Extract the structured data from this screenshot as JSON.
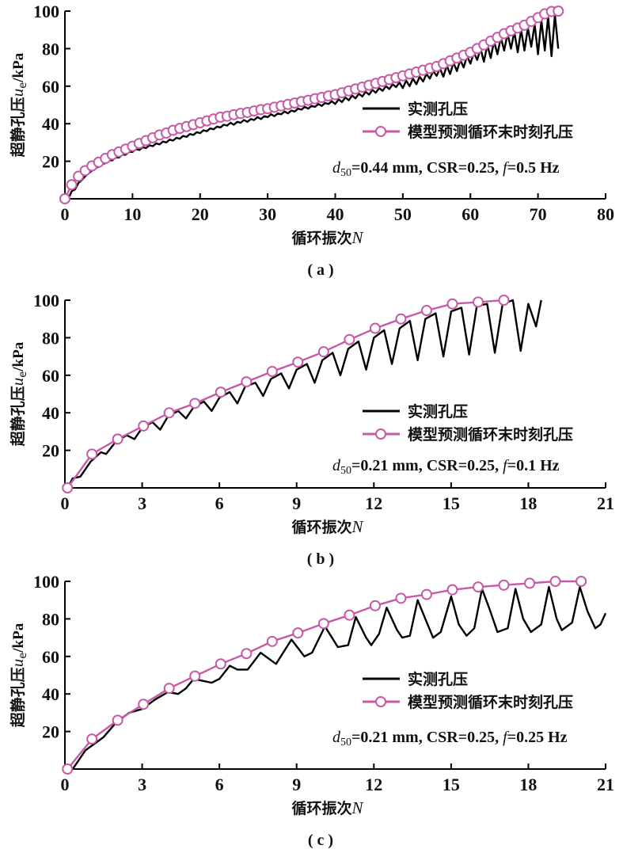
{
  "colors": {
    "measured": "#000000",
    "predicted": "#c65aa6",
    "marker_fill": "#ffffff"
  },
  "chart_data": [
    {
      "type": "line",
      "caption": "( a )",
      "xlabel": "循环振次",
      "xlabel_var": "N",
      "ylabel": "超静孔压",
      "ylabel_var": "u",
      "ylabel_sub": "e",
      "ylabel_unit": "/kPa",
      "xlim": [
        0,
        80
      ],
      "ylim": [
        0,
        100
      ],
      "xticks": [
        0,
        10,
        20,
        30,
        40,
        50,
        60,
        70,
        80
      ],
      "yticks": [
        20,
        40,
        60,
        80,
        100
      ],
      "legend": [
        "实测孔压",
        "模型预测循环末时刻孔压"
      ],
      "legend_position": "right-middle",
      "annotation": {
        "d": "d",
        "sub": "50",
        "text": "=0.44 mm, CSR=0.25, ",
        "f": "f",
        "ftext": "=0.5 Hz"
      },
      "predicted": {
        "x": [
          0,
          1,
          2,
          3,
          4,
          5,
          6,
          7,
          8,
          9,
          10,
          11,
          12,
          13,
          14,
          15,
          16,
          17,
          18,
          19,
          20,
          21,
          22,
          23,
          24,
          25,
          26,
          27,
          28,
          29,
          30,
          31,
          32,
          33,
          34,
          35,
          36,
          37,
          38,
          39,
          40,
          41,
          42,
          43,
          44,
          45,
          46,
          47,
          48,
          49,
          50,
          51,
          52,
          53,
          54,
          55,
          56,
          57,
          58,
          59,
          60,
          61,
          62,
          63,
          64,
          65,
          66,
          67,
          68,
          69,
          70,
          71,
          72,
          73
        ],
        "y": [
          0,
          7.5,
          12,
          15,
          17.5,
          19.5,
          21.5,
          23.5,
          25,
          26.5,
          28,
          29.5,
          31,
          32.5,
          34,
          35,
          36.5,
          37.5,
          38.5,
          39.5,
          40.5,
          41.5,
          42.5,
          43.5,
          44,
          44.8,
          45.5,
          46,
          46.8,
          47.5,
          48,
          48.8,
          49.5,
          50.3,
          51,
          51.8,
          52.5,
          53.3,
          54,
          54.8,
          55.5,
          56.5,
          57.5,
          58.5,
          59.5,
          60.5,
          61.5,
          62.5,
          63.5,
          64.5,
          65.5,
          66.5,
          67.5,
          68.5,
          69.5,
          70.5,
          72,
          73.5,
          75,
          76.5,
          78,
          80,
          82,
          84,
          86,
          88,
          89.5,
          91,
          92.5,
          94.5,
          96.5,
          98.5,
          99.8,
          100
        ]
      },
      "measured_cycles": {
        "N": [
          0,
          1,
          2,
          3,
          4,
          5,
          6,
          7,
          8,
          9,
          10,
          11,
          12,
          13,
          14,
          15,
          16,
          17,
          18,
          19,
          20,
          21,
          22,
          23,
          24,
          25,
          26,
          27,
          28,
          29,
          30,
          31,
          32,
          33,
          34,
          35,
          36,
          37,
          38,
          39,
          40,
          41,
          42,
          43,
          44,
          45,
          46,
          47,
          48,
          49,
          50,
          51,
          52,
          53,
          54,
          55,
          56,
          57,
          58,
          59,
          60,
          61,
          62,
          63,
          64,
          65,
          66,
          67,
          68,
          69,
          70,
          71,
          72,
          73
        ],
        "peak": [
          0,
          5,
          10,
          13.5,
          16.5,
          18.5,
          20.5,
          22,
          23.5,
          25,
          26.5,
          27.5,
          28.5,
          29.5,
          30.5,
          31.5,
          32.5,
          33.5,
          34.5,
          35.5,
          36.5,
          37.5,
          38.5,
          39.5,
          40.5,
          41,
          42,
          42.5,
          43.5,
          44,
          45,
          45.5,
          46.5,
          47,
          48,
          49,
          49.5,
          50.5,
          51,
          52,
          53,
          54,
          55,
          56,
          57,
          58,
          59,
          60,
          61,
          62,
          63,
          64,
          65,
          66.5,
          68,
          69.5,
          71,
          72.5,
          74,
          76,
          78,
          80,
          82,
          84,
          86,
          88,
          89,
          90,
          91,
          93,
          95,
          97,
          98,
          99
        ],
        "trough": [
          0,
          4,
          8.5,
          12,
          15,
          17,
          19,
          20.5,
          22,
          23.5,
          25,
          26,
          27,
          28,
          29,
          30,
          31,
          32,
          33,
          34,
          35,
          36,
          37,
          38,
          39,
          39.5,
          40.5,
          41,
          42,
          42.5,
          43.5,
          44,
          45,
          45.5,
          46.5,
          47.5,
          48,
          49,
          49.5,
          50.5,
          50.5,
          51.5,
          52.5,
          53.5,
          54.5,
          55.5,
          56.5,
          57.5,
          58.5,
          59.5,
          59,
          60,
          61,
          62.5,
          64,
          65.5,
          65,
          66.5,
          68,
          70,
          72,
          74,
          73,
          75,
          77,
          79,
          80,
          78,
          79,
          81,
          77,
          79,
          76,
          80
        ]
      }
    },
    {
      "type": "line",
      "caption": "( b )",
      "xlabel": "循环振次",
      "xlabel_var": "N",
      "ylabel": "超静孔压",
      "ylabel_var": "u",
      "ylabel_sub": "e",
      "ylabel_unit": "/kPa",
      "xlim": [
        0,
        21
      ],
      "ylim": [
        0,
        100
      ],
      "xticks": [
        0,
        3,
        6,
        9,
        12,
        15,
        18,
        21
      ],
      "yticks": [
        20,
        40,
        60,
        80,
        100
      ],
      "legend": [
        "实测孔压",
        "模型预测循环末时刻孔压"
      ],
      "legend_position": "right-middle",
      "annotation": {
        "d": "d",
        "sub": "50",
        "text": "=0.21 mm, CSR=0.25, ",
        "f": "f",
        "ftext": "=0.1 Hz"
      },
      "predicted": {
        "x": [
          0.1,
          1.05,
          2.05,
          3.05,
          4.05,
          5.05,
          6.05,
          7.05,
          8.05,
          9.05,
          10.05,
          11.05,
          12.05,
          13.05,
          14.05,
          15.05,
          16.05,
          17.05
        ],
        "y": [
          0,
          18,
          26,
          33,
          40,
          45,
          51,
          56.5,
          62,
          67,
          72.5,
          79,
          85,
          90,
          94.5,
          98,
          99,
          100
        ]
      },
      "measured": {
        "x": [
          0.1,
          0.3,
          0.6,
          1.0,
          1.4,
          1.6,
          2.0,
          2.4,
          2.7,
          3.0,
          3.4,
          3.7,
          4.0,
          4.4,
          4.7,
          5.0,
          5.4,
          5.7,
          6.0,
          6.4,
          6.7,
          7.0,
          7.4,
          7.7,
          8.0,
          8.4,
          8.7,
          9.0,
          9.4,
          9.7,
          10.0,
          10.4,
          10.7,
          11.0,
          11.4,
          11.7,
          12.0,
          12.4,
          12.7,
          13.0,
          13.4,
          13.7,
          14.0,
          14.4,
          14.7,
          15.0,
          15.4,
          15.7,
          16.0,
          16.4,
          16.7,
          17.0,
          17.4,
          17.7,
          18.0,
          18.3,
          18.5
        ],
        "y": [
          0,
          5,
          6,
          14,
          19,
          18,
          25,
          28,
          26,
          32,
          35,
          31,
          38,
          41,
          37,
          43,
          46,
          41,
          48,
          51,
          45,
          54,
          56,
          49,
          58,
          61,
          53,
          63,
          66,
          56,
          68,
          72,
          60,
          74,
          78,
          63,
          80,
          84,
          66,
          85,
          89,
          68,
          90,
          93,
          70,
          94,
          96,
          71,
          97,
          98,
          72,
          98,
          100,
          73,
          98,
          86,
          100
        ]
      }
    },
    {
      "type": "line",
      "caption": "( c )",
      "xlabel": "循环振次",
      "xlabel_var": "N",
      "ylabel": "超静孔压",
      "ylabel_var": "u",
      "ylabel_sub": "e",
      "ylabel_unit": "/kPa",
      "xlim": [
        0,
        21
      ],
      "ylim": [
        0,
        100
      ],
      "xticks": [
        0,
        3,
        6,
        9,
        12,
        15,
        18,
        21
      ],
      "yticks": [
        20,
        40,
        60,
        80,
        100
      ],
      "legend": [
        "实测孔压",
        "模型预测循环末时刻孔压"
      ],
      "legend_position": "right-middle",
      "annotation": {
        "d": "d",
        "sub": "50",
        "text": "=0.21 mm, CSR=0.25, ",
        "f": "f",
        "ftext": "=0.25 Hz"
      },
      "predicted": {
        "x": [
          0.1,
          1.05,
          2.05,
          3.05,
          4.05,
          5.05,
          6.05,
          7.05,
          8.05,
          9.05,
          10.05,
          11.05,
          12.05,
          13.05,
          14.05,
          15.05,
          16.05,
          17.05,
          18.05,
          19.05,
          20.05
        ],
        "y": [
          0,
          16,
          26,
          34.5,
          43,
          49.5,
          56,
          61.5,
          68,
          72.5,
          77.5,
          82,
          87,
          91,
          93,
          95.5,
          97,
          98,
          99,
          100,
          100
        ]
      },
      "measured": {
        "x": [
          0.3,
          0.8,
          1.5,
          2,
          2.5,
          3,
          3.5,
          4,
          4.4,
          4.7,
          5,
          5.7,
          6,
          6.4,
          6.7,
          7.1,
          7.6,
          8.2,
          8.8,
          9.3,
          9.6,
          10.1,
          10.6,
          11,
          11.3,
          11.7,
          11.9,
          12.2,
          12.5,
          12.9,
          13.1,
          13.4,
          13.7,
          14,
          14.3,
          14.6,
          15,
          15.3,
          15.6,
          15.9,
          16.2,
          16.5,
          16.8,
          17.2,
          17.5,
          17.8,
          18.1,
          18.5,
          18.8,
          19.1,
          19.3,
          19.7,
          20,
          20.3,
          20.6,
          20.8,
          21
        ],
        "y": [
          0,
          10,
          17,
          25,
          30,
          32,
          37,
          41,
          40,
          43,
          48,
          46,
          48,
          55,
          53,
          53,
          62,
          56,
          69,
          60,
          62,
          76,
          65,
          66,
          81,
          70,
          66,
          72,
          86,
          74,
          70,
          71,
          90,
          80,
          70,
          73,
          92,
          77,
          71,
          75,
          96,
          85,
          73,
          75,
          96,
          80,
          73,
          77,
          97,
          80,
          74,
          78,
          97,
          84,
          75,
          77,
          83
        ]
      }
    }
  ]
}
